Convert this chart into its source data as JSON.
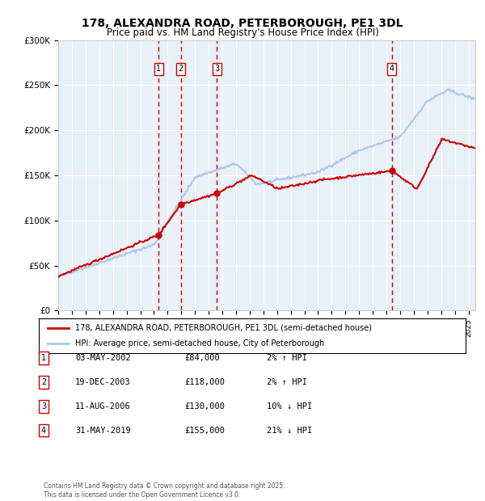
{
  "title": "178, ALEXANDRA ROAD, PETERBOROUGH, PE1 3DL",
  "subtitle": "Price paid vs. HM Land Registry's House Price Index (HPI)",
  "legend_line1": "178, ALEXANDRA ROAD, PETERBOROUGH, PE1 3DL (semi-detached house)",
  "legend_line2": "HPI: Average price, semi-detached house, City of Peterborough",
  "footer": "Contains HM Land Registry data © Crown copyright and database right 2025.\nThis data is licensed under the Open Government Licence v3.0.",
  "table_rows": [
    {
      "num": "1",
      "date": "03-MAY-2002",
      "price": "£84,000",
      "change": "2% ↑ HPI"
    },
    {
      "num": "2",
      "date": "19-DEC-2003",
      "price": "£118,000",
      "change": "2% ↑ HPI"
    },
    {
      "num": "3",
      "date": "11-AUG-2006",
      "price": "£130,000",
      "change": "10% ↓ HPI"
    },
    {
      "num": "4",
      "date": "31-MAY-2019",
      "price": "£155,000",
      "change": "21% ↓ HPI"
    }
  ],
  "sale_dates": [
    2002.34,
    2003.97,
    2006.61,
    2019.41
  ],
  "sale_prices": [
    84000,
    118000,
    130000,
    155000
  ],
  "hpi_color": "#aec6e8",
  "price_color": "#cc0000",
  "vline_color": "#cc0000",
  "bg_color": "#e8f0f8",
  "grid_color": "#ffffff",
  "ylim": [
    0,
    300000
  ],
  "yticks": [
    0,
    50000,
    100000,
    150000,
    200000,
    250000,
    300000
  ],
  "xlim_start": 1995.0,
  "xlim_end": 2025.5
}
